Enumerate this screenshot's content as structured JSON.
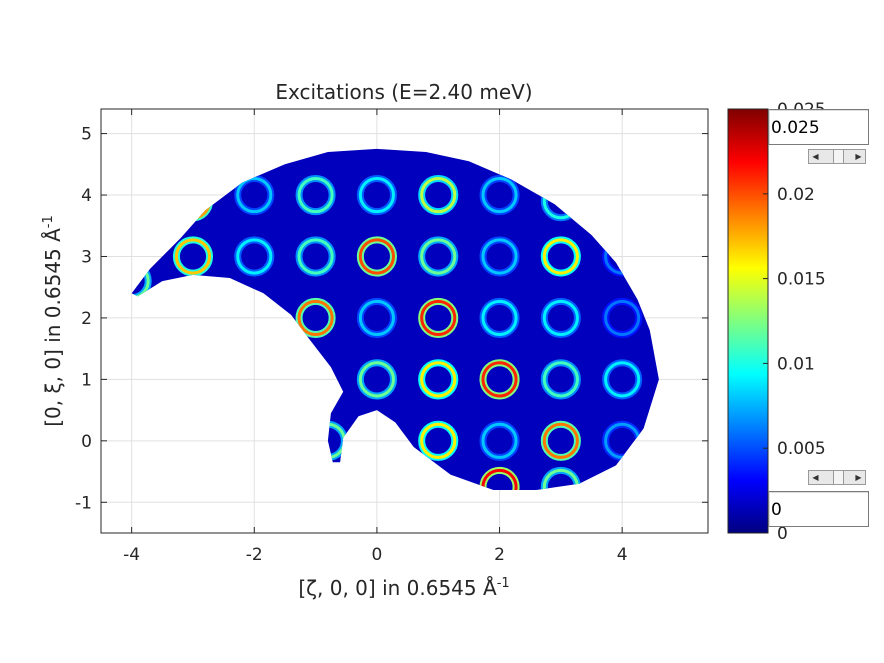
{
  "chart_data": {
    "type": "heatmap",
    "title": "Excitations (E=2.40 meV)",
    "xlabel": "[ζ, 0, 0] in 0.6545 Å",
    "xlabel_superscript": "-1",
    "ylabel": "[0, ξ, 0] in 0.6545 Å",
    "ylabel_superscript": "-1",
    "xlim": [
      -4.5,
      5.4
    ],
    "ylim": [
      -1.5,
      5.4
    ],
    "xticks": [
      -4,
      -2,
      0,
      2,
      4
    ],
    "xtick_labels": [
      "-4",
      "-2",
      "0",
      "2",
      "4"
    ],
    "yticks": [
      -1,
      0,
      1,
      2,
      3,
      4,
      5
    ],
    "ytick_labels": [
      "-1",
      "0",
      "1",
      "2",
      "3",
      "4",
      "5"
    ],
    "grid": true,
    "colormap": "jet",
    "clim": [
      0,
      0.025
    ],
    "colorbar_ticks": [
      0,
      0.005,
      0.01,
      0.015,
      0.02,
      0.025
    ],
    "colorbar_tick_labels": [
      "0",
      "0.005",
      "0.01",
      "0.015",
      "0.02",
      "0.025"
    ],
    "coverage_outline": [
      [
        -4.0,
        2.4
      ],
      [
        -3.7,
        2.8
      ],
      [
        -3.2,
        3.3
      ],
      [
        -2.8,
        3.75
      ],
      [
        -2.2,
        4.2
      ],
      [
        -1.5,
        4.5
      ],
      [
        -0.8,
        4.7
      ],
      [
        0.0,
        4.75
      ],
      [
        0.8,
        4.7
      ],
      [
        1.5,
        4.55
      ],
      [
        2.2,
        4.25
      ],
      [
        2.9,
        3.85
      ],
      [
        3.5,
        3.35
      ],
      [
        3.9,
        2.9
      ],
      [
        4.25,
        2.3
      ],
      [
        4.45,
        1.8
      ],
      [
        4.6,
        1.0
      ],
      [
        4.35,
        0.2
      ],
      [
        3.9,
        -0.4
      ],
      [
        3.3,
        -0.7
      ],
      [
        2.6,
        -0.8
      ],
      [
        1.9,
        -0.8
      ],
      [
        1.2,
        -0.55
      ],
      [
        0.6,
        -0.1
      ],
      [
        0.3,
        0.3
      ],
      [
        0.0,
        0.5
      ],
      [
        -0.3,
        0.4
      ],
      [
        -0.55,
        0.05
      ],
      [
        -0.6,
        -0.35
      ],
      [
        -0.72,
        -0.35
      ],
      [
        -0.8,
        0.0
      ],
      [
        -0.75,
        0.45
      ],
      [
        -0.55,
        0.8
      ],
      [
        -0.75,
        1.2
      ],
      [
        -1.1,
        1.65
      ],
      [
        -1.4,
        2.05
      ],
      [
        -1.85,
        2.4
      ],
      [
        -2.4,
        2.65
      ],
      [
        -3.0,
        2.7
      ],
      [
        -3.5,
        2.6
      ],
      [
        -3.9,
        2.35
      ]
    ],
    "rings": [
      {
        "x": -2,
        "y": 4,
        "intensity": 0.008
      },
      {
        "x": -1,
        "y": 4,
        "intensity": 0.011
      },
      {
        "x": 0,
        "y": 4,
        "intensity": 0.009
      },
      {
        "x": 1,
        "y": 4,
        "intensity": 0.014
      },
      {
        "x": 2,
        "y": 4,
        "intensity": 0.008
      },
      {
        "x": -3,
        "y": 3,
        "intensity": 0.017
      },
      {
        "x": -2,
        "y": 3,
        "intensity": 0.009
      },
      {
        "x": -1,
        "y": 3,
        "intensity": 0.011
      },
      {
        "x": 0,
        "y": 3,
        "intensity": 0.02
      },
      {
        "x": 1,
        "y": 3,
        "intensity": 0.012
      },
      {
        "x": 2,
        "y": 3,
        "intensity": 0.008
      },
      {
        "x": 3,
        "y": 3,
        "intensity": 0.016
      },
      {
        "x": 4,
        "y": 3,
        "intensity": 0.006
      },
      {
        "x": -1,
        "y": 2,
        "intensity": 0.019
      },
      {
        "x": 0,
        "y": 2,
        "intensity": 0.008
      },
      {
        "x": 1,
        "y": 2,
        "intensity": 0.021
      },
      {
        "x": 2,
        "y": 2,
        "intensity": 0.009
      },
      {
        "x": 3,
        "y": 2,
        "intensity": 0.009
      },
      {
        "x": 4,
        "y": 2,
        "intensity": 0.006
      },
      {
        "x": 0,
        "y": 1,
        "intensity": 0.012
      },
      {
        "x": 1,
        "y": 1,
        "intensity": 0.016
      },
      {
        "x": 2,
        "y": 1,
        "intensity": 0.021
      },
      {
        "x": 3,
        "y": 1,
        "intensity": 0.011
      },
      {
        "x": 4,
        "y": 1,
        "intensity": 0.009
      },
      {
        "x": 1,
        "y": 0,
        "intensity": 0.016
      },
      {
        "x": 2,
        "y": 0,
        "intensity": 0.008
      },
      {
        "x": 3,
        "y": 0,
        "intensity": 0.019
      },
      {
        "x": 4,
        "y": 0,
        "intensity": 0.007
      },
      {
        "x": -4,
        "y": 2.6,
        "intensity": 0.012
      },
      {
        "x": -3,
        "y": 3.9,
        "intensity": 0.018
      },
      {
        "x": -0.8,
        "y": 0,
        "intensity": 0.012
      },
      {
        "x": 2,
        "y": -0.75,
        "intensity": 0.022
      },
      {
        "x": 3,
        "y": -0.75,
        "intensity": 0.012
      },
      {
        "x": 3,
        "y": 3.9,
        "intensity": 0.01
      }
    ],
    "ring_radius": 0.27,
    "background_intensity": 0.0015
  },
  "controls": {
    "clim_max_value": "0.025",
    "clim_min_value": "0"
  }
}
